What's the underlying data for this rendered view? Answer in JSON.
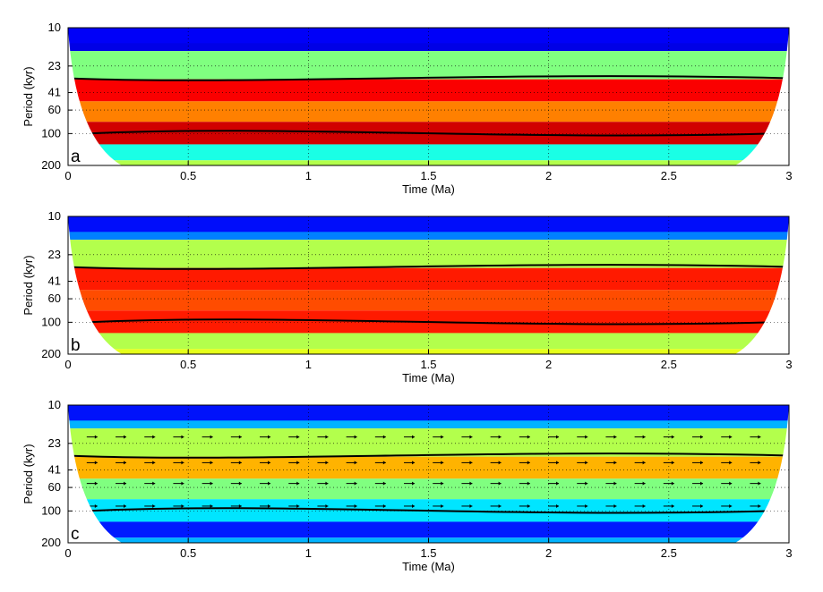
{
  "chart_data": [
    {
      "type": "heatmap",
      "panel_label": "a",
      "xlabel": "Time (Ma)",
      "ylabel": "Period (kyr)",
      "xlim": [
        0,
        3
      ],
      "ylim": [
        10,
        200
      ],
      "y_scale": "log2",
      "y_reversed": true,
      "x_ticks": [
        "0",
        "0.5",
        "1",
        "1.5",
        "2",
        "2.5",
        "3"
      ],
      "y_ticks": [
        "10",
        "23",
        "41",
        "60",
        "100",
        "200"
      ],
      "grid": "dotted",
      "colormap": "jet",
      "bands": [
        {
          "period": 12,
          "power": 0.1
        },
        {
          "period": 23,
          "power": 0.5
        },
        {
          "period": 41,
          "power": 0.88
        },
        {
          "period": 60,
          "power": 0.75
        },
        {
          "period": 100,
          "power": 0.92
        },
        {
          "period": 160,
          "power": 0.4
        },
        {
          "period": 200,
          "power": 0.55
        }
      ],
      "significance_contours": true,
      "cone_of_influence": true
    },
    {
      "type": "heatmap",
      "panel_label": "b",
      "xlabel": "Time (Ma)",
      "ylabel": "Period (kyr)",
      "xlim": [
        0,
        3
      ],
      "ylim": [
        10,
        200
      ],
      "y_scale": "log2",
      "y_reversed": true,
      "x_ticks": [
        "0",
        "0.5",
        "1",
        "1.5",
        "2",
        "2.5",
        "3"
      ],
      "y_ticks": [
        "10",
        "23",
        "41",
        "60",
        "100",
        "200"
      ],
      "grid": "dotted",
      "colormap": "jet",
      "bands": [
        {
          "period": 12,
          "power": 0.25
        },
        {
          "period": 23,
          "power": 0.55
        },
        {
          "period": 41,
          "power": 0.85
        },
        {
          "period": 60,
          "power": 0.8
        },
        {
          "period": 100,
          "power": 0.85
        },
        {
          "period": 160,
          "power": 0.55
        },
        {
          "period": 200,
          "power": 0.6
        }
      ],
      "significance_contours": true,
      "cone_of_influence": true
    },
    {
      "type": "heatmap",
      "panel_label": "c",
      "xlabel": "Time (Ma)",
      "ylabel": "Period (kyr)",
      "xlim": [
        0,
        3
      ],
      "ylim": [
        10,
        200
      ],
      "y_scale": "log2",
      "y_reversed": true,
      "x_ticks": [
        "0",
        "0.5",
        "1",
        "1.5",
        "2",
        "2.5",
        "3"
      ],
      "y_ticks": [
        "10",
        "23",
        "41",
        "60",
        "100",
        "200"
      ],
      "grid": "dotted",
      "colormap": "jet",
      "bands": [
        {
          "period": 12,
          "power": 0.3
        },
        {
          "period": 23,
          "power": 0.55
        },
        {
          "period": 41,
          "power": 0.7
        },
        {
          "period": 60,
          "power": 0.5
        },
        {
          "period": 100,
          "power": 0.35
        },
        {
          "period": 160,
          "power": 0.15
        },
        {
          "period": 200,
          "power": 0.3
        }
      ],
      "significance_contours": true,
      "phase_arrows": true,
      "cone_of_influence": true
    }
  ]
}
